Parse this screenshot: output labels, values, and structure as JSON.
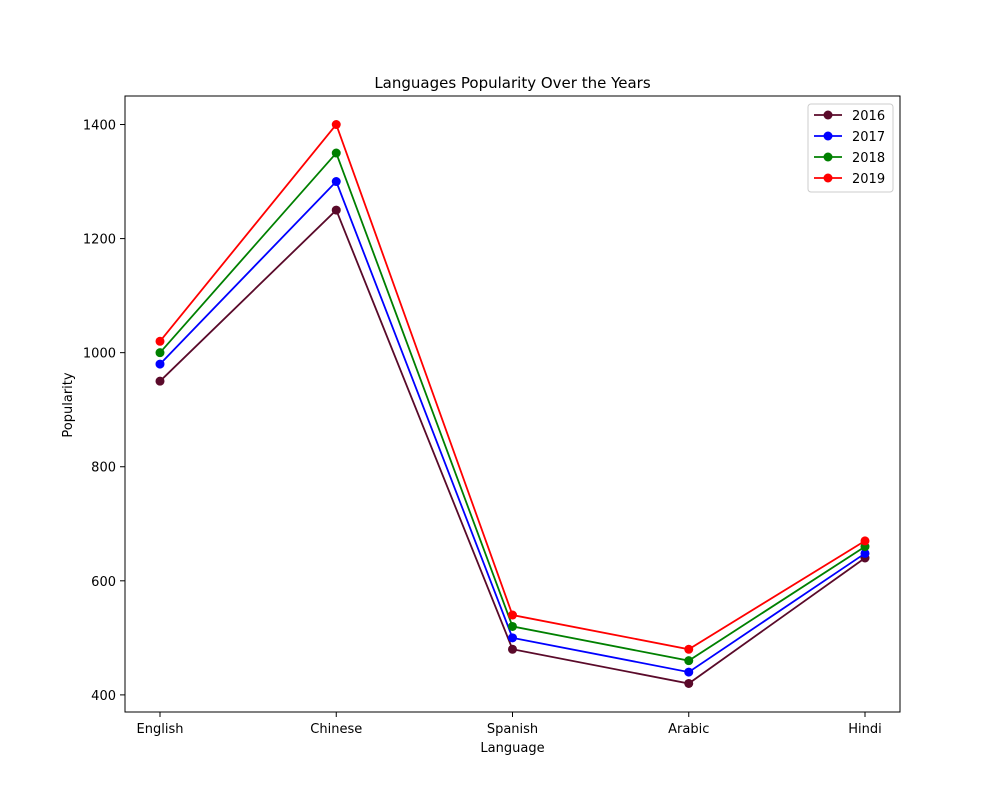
{
  "chart_data": {
    "type": "line",
    "title": "Languages Popularity Over the Years",
    "xlabel": "Language",
    "ylabel": "Popularity",
    "categories": [
      "English",
      "Chinese",
      "Spanish",
      "Arabic",
      "Hindi"
    ],
    "ylim": [
      370,
      1450
    ],
    "yticks": [
      400,
      600,
      800,
      1000,
      1200,
      1400
    ],
    "grid": false,
    "legend_position": "top-right",
    "series": [
      {
        "name": "2016",
        "color": "#5a0a2a",
        "values": [
          950,
          1250,
          480,
          420,
          640
        ]
      },
      {
        "name": "2017",
        "color": "#0000ff",
        "values": [
          980,
          1300,
          500,
          440,
          648
        ]
      },
      {
        "name": "2018",
        "color": "#008000",
        "values": [
          1000,
          1350,
          520,
          460,
          660
        ]
      },
      {
        "name": "2019",
        "color": "#ff0000",
        "values": [
          1020,
          1400,
          540,
          480,
          670
        ]
      }
    ]
  }
}
